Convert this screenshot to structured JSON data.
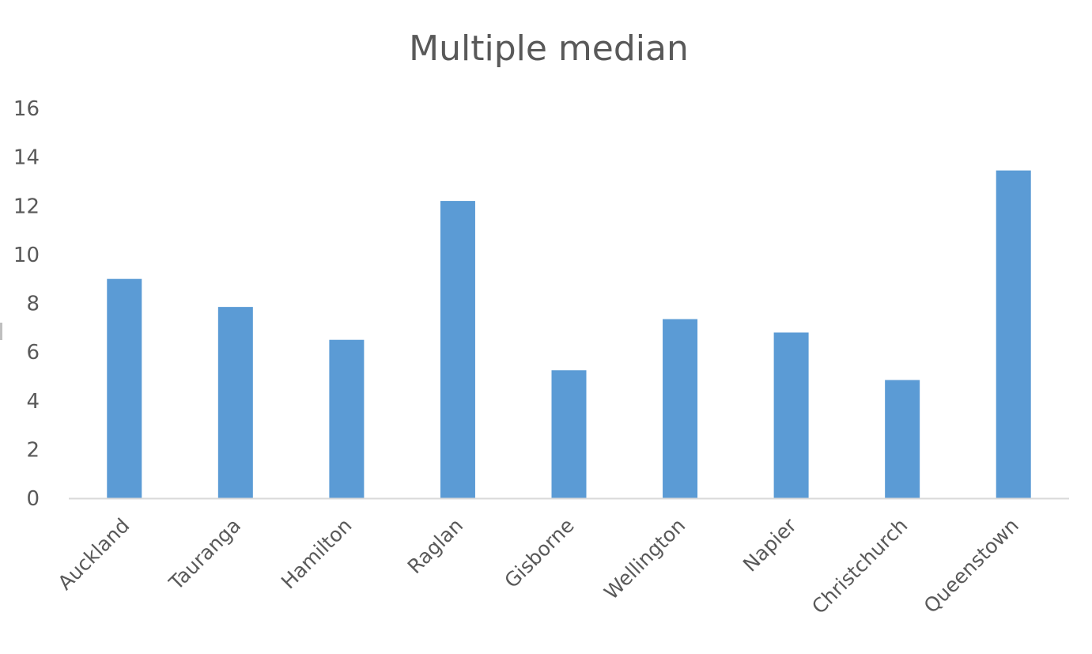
{
  "chart_data": {
    "type": "bar",
    "title": "Multiple median",
    "xlabel": "",
    "ylabel": "",
    "categories": [
      "Auckland",
      "Tauranga",
      "Hamilton",
      "Raglan",
      "Gisborne",
      "Wellington",
      "Napier",
      "Christchurch",
      "Queenstown"
    ],
    "values": [
      9.0,
      7.85,
      6.5,
      12.2,
      5.25,
      7.35,
      6.8,
      4.85,
      13.45
    ],
    "ylim": [
      0,
      16
    ],
    "yticks": [
      "0",
      "2",
      "4",
      "6",
      "8",
      "10",
      "12",
      "14",
      "16"
    ],
    "grid": false,
    "legend": "none",
    "bar_color": "#5b9bd5",
    "axis_color": "#d9d9d9",
    "text_color": "#595959"
  }
}
